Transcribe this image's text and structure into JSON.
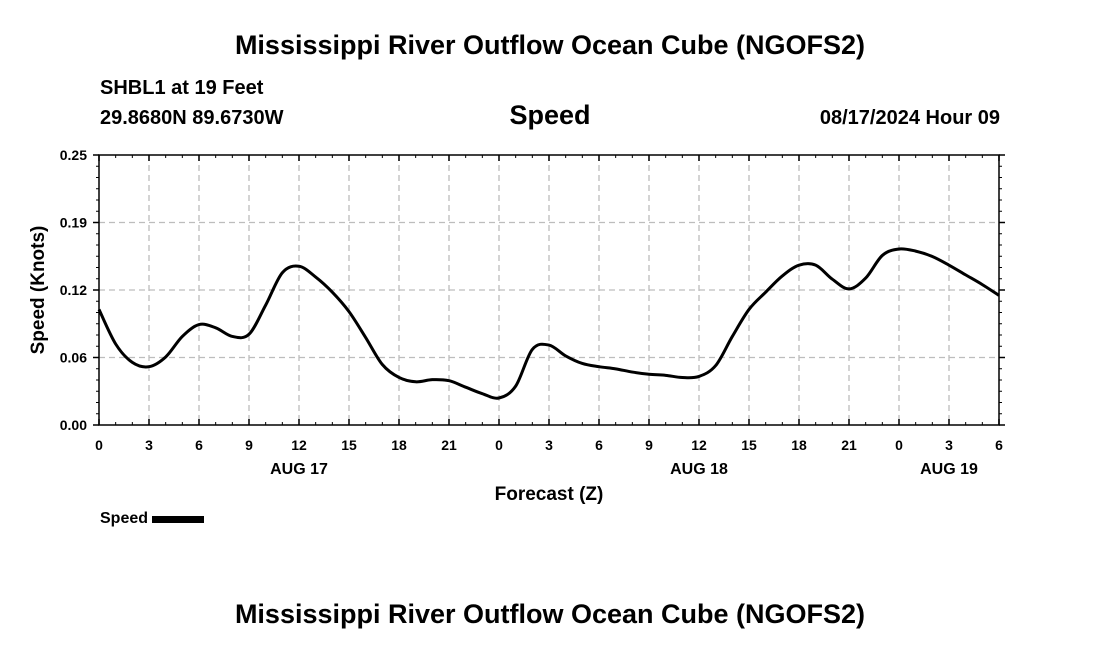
{
  "header": {
    "title": "Mississippi River Outflow Ocean Cube (NGOFS2)",
    "station": "SHBL1 at 19 Feet",
    "coords": "29.8680N  89.6730W",
    "variable": "Speed",
    "timestamp": "08/17/2024 Hour 09"
  },
  "footer": {
    "title": "Mississippi River Outflow Ocean Cube (NGOFS2)"
  },
  "legend": {
    "label": "Speed"
  },
  "chart_data": {
    "type": "line",
    "title": "Speed",
    "xlabel": "Forecast (Z)",
    "ylabel": "Speed (Knots)",
    "xlim": [
      0,
      54
    ],
    "ylim": [
      0,
      0.25
    ],
    "grid": true,
    "legend_position": "bottom-left",
    "x_ticks": [
      "0",
      "3",
      "6",
      "9",
      "12",
      "15",
      "18",
      "21",
      "0",
      "3",
      "6",
      "9",
      "12",
      "15",
      "18",
      "21",
      "0",
      "3",
      "6"
    ],
    "y_ticks": [
      "0.00",
      "0.06",
      "0.12",
      "0.19",
      "0.25"
    ],
    "y_tick_values": [
      0,
      0.0625,
      0.125,
      0.1875,
      0.25
    ],
    "date_labels": [
      {
        "label": "AUG 17",
        "hour": 12
      },
      {
        "label": "AUG 18",
        "hour": 36
      },
      {
        "label": "AUG 19",
        "hour": 51
      }
    ],
    "series": [
      {
        "name": "Speed",
        "color": "#000000",
        "x": [
          0,
          1,
          2,
          3,
          4,
          5,
          6,
          7,
          8,
          9,
          10,
          11,
          12,
          13,
          14,
          15,
          16,
          17,
          18,
          19,
          20,
          21,
          22,
          23,
          24,
          25,
          26,
          27,
          28,
          29,
          30,
          31,
          32,
          33,
          34,
          35,
          36,
          37,
          38,
          39,
          40,
          41,
          42,
          43,
          44,
          45,
          46,
          47,
          48,
          49,
          50,
          51,
          52,
          53,
          54
        ],
        "y": [
          0.107,
          0.075,
          0.058,
          0.054,
          0.063,
          0.082,
          0.093,
          0.09,
          0.082,
          0.084,
          0.111,
          0.141,
          0.147,
          0.137,
          0.123,
          0.105,
          0.081,
          0.056,
          0.044,
          0.04,
          0.042,
          0.041,
          0.035,
          0.029,
          0.025,
          0.036,
          0.07,
          0.074,
          0.064,
          0.057,
          0.054,
          0.052,
          0.049,
          0.047,
          0.046,
          0.044,
          0.045,
          0.055,
          0.082,
          0.107,
          0.123,
          0.138,
          0.148,
          0.148,
          0.135,
          0.126,
          0.136,
          0.157,
          0.163,
          0.161,
          0.156,
          0.148,
          0.139,
          0.13,
          0.12
        ]
      }
    ]
  }
}
